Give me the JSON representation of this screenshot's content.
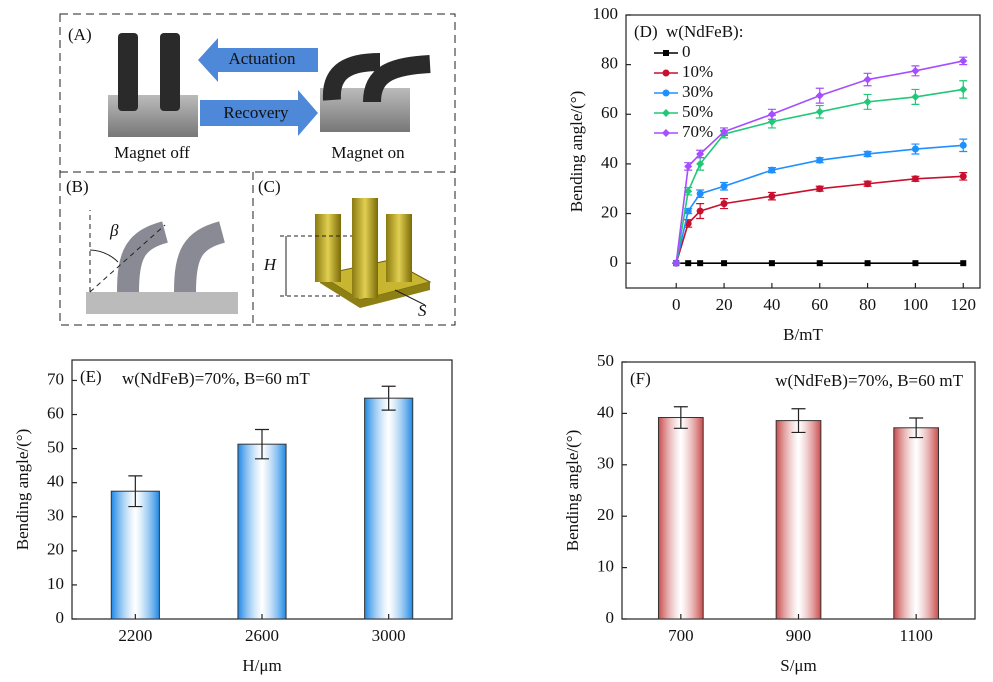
{
  "diagrams": {
    "A": {
      "label": "(A)",
      "arrow_top": "Actuation",
      "arrow_bottom": "Recovery",
      "left_caption": "Magnet off",
      "right_caption": "Magnet on"
    },
    "B": {
      "label": "(B)",
      "angle": "β"
    },
    "C": {
      "label": "(C)",
      "height": "H",
      "spacing": "S"
    }
  },
  "chart_data": [
    {
      "type": "line",
      "label": "(D)",
      "legend_title": "w(NdFeB):",
      "x": [
        0,
        5,
        10,
        20,
        40,
        60,
        80,
        100,
        120
      ],
      "series": [
        {
          "name": "0",
          "color": "#000000",
          "marker": "square",
          "values": [
            0,
            0,
            0,
            0,
            0,
            0,
            0,
            0,
            0
          ]
        },
        {
          "name": "10%",
          "color": "#c8102e",
          "marker": "circle",
          "values": [
            0,
            16,
            21,
            24,
            27,
            30,
            32,
            34,
            35
          ],
          "errors": [
            0,
            1.5,
            3,
            2,
            1.5,
            1,
            1,
            1,
            1.5
          ]
        },
        {
          "name": "30%",
          "color": "#1e90ff",
          "marker": "circle",
          "values": [
            0,
            21,
            28,
            31,
            37.5,
            41.5,
            44,
            46,
            47.5
          ],
          "errors": [
            0,
            1,
            1.5,
            1.5,
            1,
            1,
            1,
            2,
            2.5
          ]
        },
        {
          "name": "50%",
          "color": "#22c77a",
          "marker": "diamond",
          "values": [
            0,
            29,
            40,
            52,
            57,
            61,
            65,
            67,
            70
          ],
          "errors": [
            0,
            1.5,
            2.5,
            1.5,
            2.5,
            2.5,
            3,
            3,
            3.5
          ]
        },
        {
          "name": "70%",
          "color": "#a64dff",
          "marker": "diamond",
          "values": [
            0,
            39,
            44,
            53,
            60,
            67.5,
            74,
            77.5,
            81.5
          ],
          "errors": [
            0,
            1.5,
            1.5,
            1.5,
            2,
            3,
            2.5,
            2,
            1.5
          ]
        }
      ],
      "xlim": [
        -21,
        127
      ],
      "ylim": [
        -10,
        100
      ],
      "xticks": [
        0,
        20,
        40,
        60,
        80,
        100,
        120
      ],
      "yticks": [
        0,
        20,
        40,
        60,
        80,
        100
      ],
      "xlabel": "B/mT",
      "ylabel": "Bending angle/(°)"
    },
    {
      "type": "bar",
      "label": "(E)",
      "annotation": "w(NdFeB)=70%, B=60 mT",
      "categories": [
        "2200",
        "2600",
        "3000"
      ],
      "values": [
        37.5,
        51.3,
        64.8
      ],
      "errors": [
        4.5,
        4.3,
        3.5
      ],
      "color": "#1e88e5",
      "ylim": [
        0,
        76
      ],
      "yticks": [
        0,
        10,
        20,
        30,
        40,
        50,
        60,
        70
      ],
      "xlabel": "H/μm",
      "ylabel": "Bending angle/(°)"
    },
    {
      "type": "bar",
      "label": "(F)",
      "annotation": "w(NdFeB)=70%, B=60 mT",
      "categories": [
        "700",
        "900",
        "1100"
      ],
      "values": [
        39.2,
        38.6,
        37.2
      ],
      "errors": [
        2.1,
        2.3,
        1.9
      ],
      "color": "#c94a4a",
      "ylim": [
        0,
        50
      ],
      "yticks": [
        0,
        10,
        20,
        30,
        40,
        50
      ],
      "xlabel": "S/μm",
      "ylabel": "Bending angle/(°)"
    }
  ]
}
